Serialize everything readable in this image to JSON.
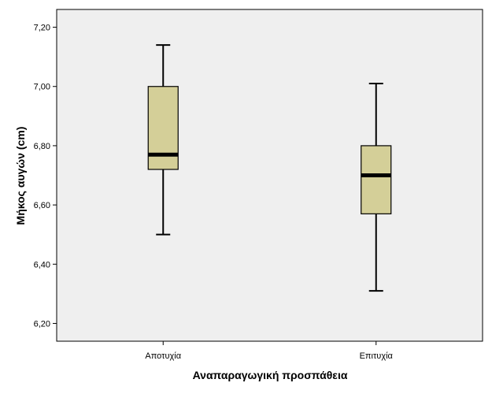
{
  "chart_data": {
    "type": "boxplot",
    "xlabel": "Αναπαραγωγική προσπάθεια",
    "ylabel": "Μήκος αυγών (cm)",
    "ylim": [
      6.14,
      7.26
    ],
    "yticks": [
      6.2,
      6.4,
      6.6,
      6.8,
      7.0,
      7.2
    ],
    "ytick_labels": [
      "6,20",
      "6,40",
      "6,60",
      "6,80",
      "7,00",
      "7,20"
    ],
    "categories": [
      "Αποτυχία",
      "Επιτυχία"
    ],
    "boxes": [
      {
        "category": "Αποτυχία",
        "min": 6.5,
        "q1": 6.72,
        "median": 6.77,
        "q3": 7.0,
        "max": 7.14
      },
      {
        "category": "Επιτυχία",
        "min": 6.31,
        "q1": 6.57,
        "median": 6.7,
        "q3": 6.8,
        "max": 7.01
      }
    ],
    "grid": false,
    "legend": "none",
    "colors": {
      "plot_background": "#efefef",
      "box_fill": "#d4cf98",
      "stroke": "#000000"
    }
  }
}
